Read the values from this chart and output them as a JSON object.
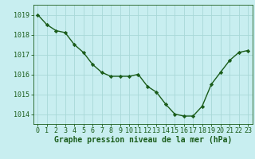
{
  "x": [
    0,
    1,
    2,
    3,
    4,
    5,
    6,
    7,
    8,
    9,
    10,
    11,
    12,
    13,
    14,
    15,
    16,
    17,
    18,
    19,
    20,
    21,
    22,
    23
  ],
  "y": [
    1019.0,
    1018.5,
    1018.2,
    1018.1,
    1017.5,
    1017.1,
    1016.5,
    1016.1,
    1015.9,
    1015.9,
    1015.9,
    1016.0,
    1015.4,
    1015.1,
    1014.5,
    1014.0,
    1013.9,
    1013.9,
    1014.4,
    1015.5,
    1016.1,
    1016.7,
    1017.1,
    1017.2
  ],
  "line_color": "#1a5c1a",
  "marker": "D",
  "marker_size": 2.2,
  "bg_color": "#c8eef0",
  "grid_color": "#a8d8d8",
  "xlabel": "Graphe pression niveau de la mer (hPa)",
  "xlabel_color": "#1a5c1a",
  "tick_color": "#1a5c1a",
  "ylim": [
    1013.5,
    1019.5
  ],
  "xlim": [
    -0.5,
    23.5
  ],
  "yticks": [
    1014,
    1015,
    1016,
    1017,
    1018,
    1019
  ],
  "xticks": [
    0,
    1,
    2,
    3,
    4,
    5,
    6,
    7,
    8,
    9,
    10,
    11,
    12,
    13,
    14,
    15,
    16,
    17,
    18,
    19,
    20,
    21,
    22,
    23
  ],
  "label_fontsize": 7.0,
  "tick_fontsize": 6.0,
  "linewidth": 1.0
}
